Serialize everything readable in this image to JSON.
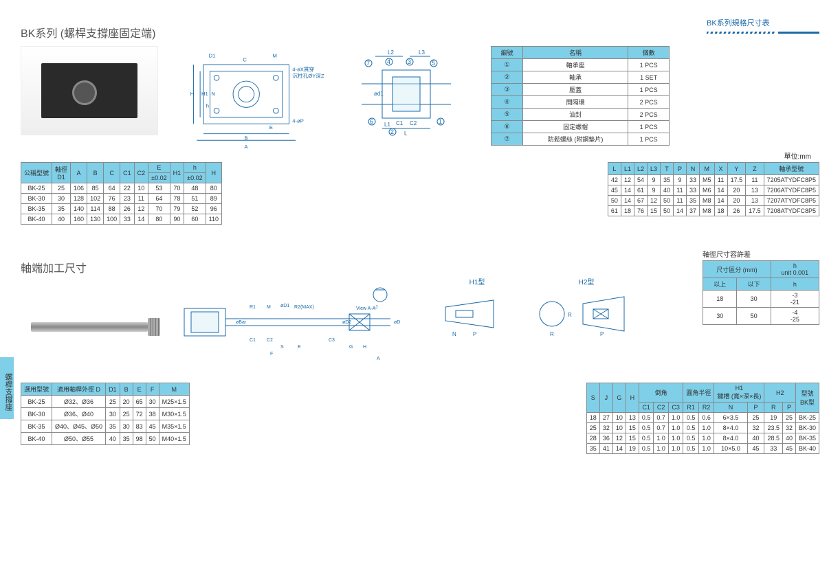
{
  "header": {
    "title": "BK系列規格尺寸表"
  },
  "sideTab": "螺桿支撐座",
  "section1": {
    "title": "BK系列 (螺桿支撐座固定端)",
    "partsTable": {
      "headers": [
        "編號",
        "名稱",
        "個數"
      ],
      "rows": [
        [
          "①",
          "軸承座",
          "1 PCS"
        ],
        [
          "②",
          "軸承",
          "1 SET"
        ],
        [
          "③",
          "壓蓋",
          "1 PCS"
        ],
        [
          "④",
          "間隔環",
          "2 PCS"
        ],
        [
          "⑤",
          "油封",
          "2 PCS"
        ],
        [
          "⑥",
          "固定螺帽",
          "1 PCS"
        ],
        [
          "⑦",
          "防鬆螺絲 (附鋼墊片)",
          "1 PCS"
        ]
      ]
    },
    "unitNote": "單位:mm",
    "dimTableA": {
      "headers": [
        {
          "l": "公稱型號",
          "r": 2
        },
        {
          "l": "軸徑\nD1",
          "r": 2
        },
        {
          "l": "A",
          "r": 2
        },
        {
          "l": "B",
          "r": 2
        },
        {
          "l": "C",
          "r": 2
        },
        {
          "l": "C1",
          "r": 2
        },
        {
          "l": "C2",
          "r": 2
        },
        {
          "l": "E"
        },
        {
          "l": "H1",
          "r": 2
        },
        {
          "l": "h"
        },
        {
          "l": "H",
          "r": 2
        }
      ],
      "sub": [
        "±0.02",
        "±0.02"
      ],
      "rows": [
        [
          "BK-25",
          "25",
          "106",
          "85",
          "64",
          "22",
          "10",
          "53",
          "70",
          "48",
          "80"
        ],
        [
          "BK-30",
          "30",
          "128",
          "102",
          "76",
          "23",
          "11",
          "64",
          "78",
          "51",
          "89"
        ],
        [
          "BK-35",
          "35",
          "140",
          "114",
          "88",
          "26",
          "12",
          "70",
          "79",
          "52",
          "96"
        ],
        [
          "BK-40",
          "40",
          "160",
          "130",
          "100",
          "33",
          "14",
          "80",
          "90",
          "60",
          "110"
        ]
      ]
    },
    "dimTableB": {
      "headers": [
        "L",
        "L1",
        "L2",
        "L3",
        "T",
        "P",
        "N",
        "M",
        "X",
        "Y",
        "Z",
        "軸承型號"
      ],
      "rows": [
        [
          "42",
          "12",
          "54",
          "9",
          "35",
          "9",
          "33",
          "M5",
          "11",
          "17.5",
          "11",
          "7205ATYDFC8P5"
        ],
        [
          "45",
          "14",
          "61",
          "9",
          "40",
          "11",
          "33",
          "M6",
          "14",
          "20",
          "13",
          "7206ATYDFC8P5"
        ],
        [
          "50",
          "14",
          "67",
          "12",
          "50",
          "11",
          "35",
          "M8",
          "14",
          "20",
          "13",
          "7207ATYDFC8P5"
        ],
        [
          "61",
          "18",
          "76",
          "15",
          "50",
          "14",
          "37",
          "M8",
          "18",
          "26",
          "17.5",
          "7208ATYDFC8P5"
        ]
      ]
    },
    "drawingLabels": {
      "a": "A",
      "b": "B",
      "c": "C",
      "e": "E",
      "h": "H",
      "h1": "H1",
      "n": "N",
      "nh": "h",
      "d1": "D1",
      "m": "M",
      "p": "4-øP",
      "note1": "4-øX貫穿",
      "note2": "沉柱孔ØY深Z",
      "l": "L",
      "l1": "L1",
      "l2": "L2",
      "l3": "L3",
      "c1": "C1",
      "c2": "C2",
      "od1": "ød1"
    }
  },
  "section2": {
    "title": "軸端加工尺寸",
    "tolTitle": "軸徑尺寸容許差",
    "tolTable": {
      "headers": [
        "尺寸區分 (mm)",
        "h\nunit 0.001"
      ],
      "sub": [
        "以上",
        "以下",
        "h"
      ],
      "rows": [
        [
          "18",
          "30",
          "-3\n-21"
        ],
        [
          "30",
          "50",
          "-4\n-25"
        ]
      ]
    },
    "hLabels": {
      "h1": "H1型",
      "h2": "H2型"
    },
    "dLabels": {
      "n": "N",
      "p": "P",
      "r": "R",
      "j": "J",
      "viewA": "View A-A",
      "a": "A",
      "r1": "R1",
      "r2": "R2(MAX)",
      "m": "M",
      "od": "øD",
      "od1": "øD1",
      "od2": "øD2",
      "obar": "øBar",
      "c1": "C1",
      "c2": "C2",
      "c3": "C3",
      "s": "S",
      "e": "E",
      "f": "F",
      "g": "G",
      "h": "H"
    },
    "tableA": {
      "headers": [
        "選用型號",
        "適用軸桿外徑 D",
        "D1",
        "B",
        "E",
        "F",
        "M"
      ],
      "rows": [
        [
          "BK-25",
          "Ø32、Ø36",
          "25",
          "20",
          "65",
          "30",
          "M25×1.5"
        ],
        [
          "BK-30",
          "Ø36、Ø40",
          "30",
          "25",
          "72",
          "38",
          "M30×1.5"
        ],
        [
          "BK-35",
          "Ø40、Ø45、Ø50",
          "35",
          "30",
          "83",
          "45",
          "M35×1.5"
        ],
        [
          "BK-40",
          "Ø50、Ø55",
          "40",
          "35",
          "98",
          "50",
          "M40×1.5"
        ]
      ]
    },
    "tableB": {
      "headerTop": [
        {
          "l": "S",
          "r": 2
        },
        {
          "l": "J",
          "r": 2
        },
        {
          "l": "G",
          "r": 2
        },
        {
          "l": "H",
          "r": 2
        },
        {
          "l": "倒角",
          "c": 3
        },
        {
          "l": "圓角半徑",
          "c": 2
        },
        {
          "l": "H1\n鍵槽 (寬×深×長)",
          "c": 2
        },
        {
          "l": "H2",
          "c": 2
        },
        {
          "l": "型號\nBK型",
          "r": 2
        }
      ],
      "headerSub": [
        "C1",
        "C2",
        "C3",
        "R1",
        "R2",
        "N",
        "P",
        "R",
        "P"
      ],
      "rows": [
        [
          "18",
          "27",
          "10",
          "13",
          "0.5",
          "0.7",
          "1.0",
          "0.5",
          "0.6",
          "6×3.5",
          "25",
          "19",
          "25",
          "BK-25"
        ],
        [
          "25",
          "32",
          "10",
          "15",
          "0.5",
          "0.7",
          "1.0",
          "0.5",
          "1.0",
          "8×4.0",
          "32",
          "23.5",
          "32",
          "BK-30"
        ],
        [
          "28",
          "36",
          "12",
          "15",
          "0.5",
          "1.0",
          "1.0",
          "0.5",
          "1.0",
          "8×4.0",
          "40",
          "28.5",
          "40",
          "BK-35"
        ],
        [
          "35",
          "41",
          "14",
          "19",
          "0.5",
          "1.0",
          "1.0",
          "0.5",
          "1.0",
          "10×5.0",
          "45",
          "33",
          "45",
          "BK-40"
        ]
      ]
    }
  },
  "colors": {
    "header": "#7fcfe8",
    "line": "#1a6aa8"
  }
}
